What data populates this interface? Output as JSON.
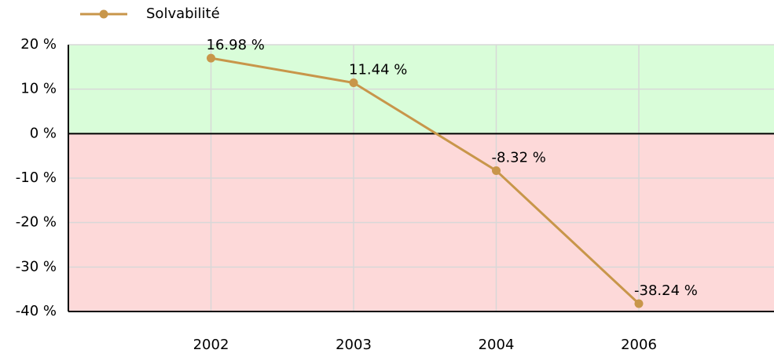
{
  "chart_data": {
    "type": "line",
    "categories": [
      "2002",
      "2003",
      "2004",
      "2006"
    ],
    "series": [
      {
        "name": "Solvabilité",
        "color": "#c8964a",
        "values": [
          16.98,
          11.44,
          -8.32,
          -38.24
        ],
        "value_labels": [
          "16.98 %",
          "11.44 %",
          "-8.32 %",
          "-38.24 %"
        ]
      }
    ],
    "ylim": [
      -40,
      20
    ],
    "yticks": [
      {
        "value": -40,
        "label": "-40 %"
      },
      {
        "value": -30,
        "label": "-30 %"
      },
      {
        "value": -20,
        "label": "-20 %"
      },
      {
        "value": -10,
        "label": "-10 %"
      },
      {
        "value": 0,
        "label": "0 %"
      },
      {
        "value": 10,
        "label": "10 %"
      },
      {
        "value": 20,
        "label": "20 %"
      }
    ],
    "grid": true,
    "legend": "top-left"
  }
}
